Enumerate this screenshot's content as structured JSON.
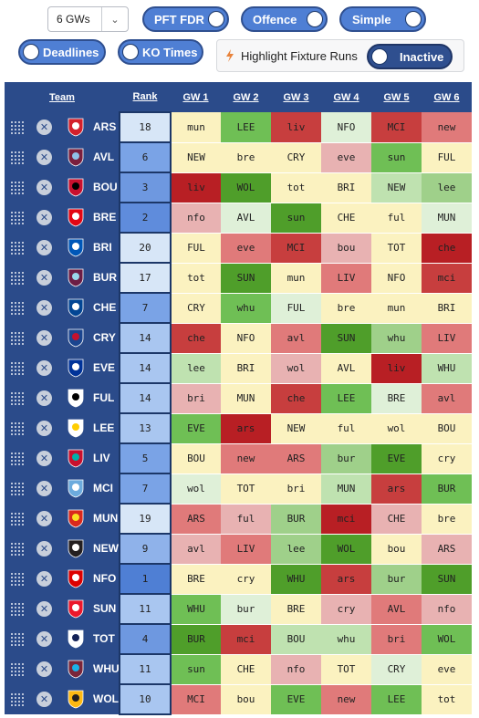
{
  "controls": {
    "gw_select": {
      "value": "6 GWs"
    },
    "toggles": [
      {
        "label": "PFT FDR",
        "knob": "right"
      },
      {
        "label": "Offence",
        "knob": "right"
      },
      {
        "label": "Simple",
        "knob": "right"
      },
      {
        "label": "Deadlines",
        "knob": "left"
      },
      {
        "label": "KO Times",
        "knob": "left"
      }
    ],
    "highlight": {
      "label": "Highlight Fixture Runs",
      "state": "Inactive"
    }
  },
  "table": {
    "headers": {
      "team": "Team",
      "rank": "Rank",
      "gw": [
        "GW 1",
        "GW 2",
        "GW 3",
        "GW 4",
        "GW 5",
        "GW 6"
      ]
    },
    "rows": [
      {
        "team": "ARS",
        "crest": "#d3202b",
        "crest2": "#ffffff",
        "rank": "18",
        "rank_bg": "#d7e6f7",
        "fixtures": [
          "mun",
          "LEE",
          "liv",
          "NFO",
          "MCI",
          "new"
        ],
        "colors": [
          "#fbf2c0",
          "#6fbf55",
          "#c73e3e",
          "#dff0d8",
          "#c73e3e",
          "#e07a7a"
        ]
      },
      {
        "team": "AVL",
        "crest": "#7a1f3d",
        "crest2": "#8fc1e8",
        "rank": "6",
        "rank_bg": "#7aa3e6",
        "fixtures": [
          "NEW",
          "bre",
          "CRY",
          "eve",
          "sun",
          "FUL"
        ],
        "colors": [
          "#fbf2c0",
          "#fbf2c0",
          "#fbf2c0",
          "#e8b2b2",
          "#6fbf55",
          "#fbf2c0"
        ]
      },
      {
        "team": "BOU",
        "crest": "#c8102e",
        "crest2": "#000000",
        "rank": "3",
        "rank_bg": "#6e98e0",
        "fixtures": [
          "liv",
          "WOL",
          "tot",
          "BRI",
          "NEW",
          "lee"
        ],
        "colors": [
          "#b81f24",
          "#4f9e2a",
          "#fbf2c0",
          "#fbf2c0",
          "#bfe2b0",
          "#9fd08a"
        ]
      },
      {
        "team": "BRE",
        "crest": "#e30613",
        "crest2": "#ffffff",
        "rank": "2",
        "rank_bg": "#5f8cdc",
        "fixtures": [
          "nfo",
          "AVL",
          "sun",
          "CHE",
          "ful",
          "MUN"
        ],
        "colors": [
          "#e8b2b2",
          "#dff0d8",
          "#4f9e2a",
          "#fbf2c0",
          "#fbf2c0",
          "#dff0d8"
        ]
      },
      {
        "team": "BRI",
        "crest": "#0057b8",
        "crest2": "#ffffff",
        "rank": "20",
        "rank_bg": "#d7e6f7",
        "fixtures": [
          "FUL",
          "eve",
          "MCI",
          "bou",
          "TOT",
          "che"
        ],
        "colors": [
          "#fbf2c0",
          "#e07a7a",
          "#c73e3e",
          "#e8b2b2",
          "#fbf2c0",
          "#b81f24"
        ]
      },
      {
        "team": "BUR",
        "crest": "#6c1d45",
        "crest2": "#99d6ea",
        "rank": "17",
        "rank_bg": "#d7e6f7",
        "fixtures": [
          "tot",
          "SUN",
          "mun",
          "LIV",
          "NFO",
          "mci"
        ],
        "colors": [
          "#fbf2c0",
          "#4f9e2a",
          "#fbf2c0",
          "#e07a7a",
          "#fbf2c0",
          "#c73e3e"
        ]
      },
      {
        "team": "CHE",
        "crest": "#034694",
        "crest2": "#ffffff",
        "rank": "7",
        "rank_bg": "#7aa3e6",
        "fixtures": [
          "CRY",
          "whu",
          "FUL",
          "bre",
          "mun",
          "BRI"
        ],
        "colors": [
          "#fbf2c0",
          "#6fbf55",
          "#dff0d8",
          "#fbf2c0",
          "#fbf2c0",
          "#fbf2c0"
        ]
      },
      {
        "team": "CRY",
        "crest": "#1b458f",
        "crest2": "#c4122e",
        "rank": "14",
        "rank_bg": "#a9c6f0",
        "fixtures": [
          "che",
          "NFO",
          "avl",
          "SUN",
          "whu",
          "LIV"
        ],
        "colors": [
          "#c73e3e",
          "#fbf2c0",
          "#e07a7a",
          "#4f9e2a",
          "#9fd08a",
          "#e07a7a"
        ]
      },
      {
        "team": "EVE",
        "crest": "#003399",
        "crest2": "#ffffff",
        "rank": "14",
        "rank_bg": "#a9c6f0",
        "fixtures": [
          "lee",
          "BRI",
          "wol",
          "AVL",
          "liv",
          "WHU"
        ],
        "colors": [
          "#bfe2b0",
          "#fbf2c0",
          "#e8b2b2",
          "#fbf2c0",
          "#b81f24",
          "#bfe2b0"
        ]
      },
      {
        "team": "FUL",
        "crest": "#ffffff",
        "crest2": "#000000",
        "rank": "14",
        "rank_bg": "#a9c6f0",
        "fixtures": [
          "bri",
          "MUN",
          "che",
          "LEE",
          "BRE",
          "avl"
        ],
        "colors": [
          "#e8b2b2",
          "#fbf2c0",
          "#c73e3e",
          "#6fbf55",
          "#dff0d8",
          "#e07a7a"
        ]
      },
      {
        "team": "LEE",
        "crest": "#ffffff",
        "crest2": "#ffcd00",
        "rank": "13",
        "rank_bg": "#a9c6f0",
        "fixtures": [
          "EVE",
          "ars",
          "NEW",
          "ful",
          "wol",
          "BOU"
        ],
        "colors": [
          "#6fbf55",
          "#b81f24",
          "#fbf2c0",
          "#fbf2c0",
          "#fbf2c0",
          "#fbf2c0"
        ]
      },
      {
        "team": "LIV",
        "crest": "#c8102e",
        "crest2": "#00b2a9",
        "rank": "5",
        "rank_bg": "#7aa3e6",
        "fixtures": [
          "BOU",
          "new",
          "ARS",
          "bur",
          "EVE",
          "cry"
        ],
        "colors": [
          "#fbf2c0",
          "#e07a7a",
          "#e07a7a",
          "#9fd08a",
          "#4f9e2a",
          "#fbf2c0"
        ]
      },
      {
        "team": "MCI",
        "crest": "#6cabdd",
        "crest2": "#ffffff",
        "rank": "7",
        "rank_bg": "#7aa3e6",
        "fixtures": [
          "wol",
          "TOT",
          "bri",
          "MUN",
          "ars",
          "BUR"
        ],
        "colors": [
          "#dff0d8",
          "#fbf2c0",
          "#fbf2c0",
          "#bfe2b0",
          "#c73e3e",
          "#6fbf55"
        ]
      },
      {
        "team": "MUN",
        "crest": "#da291c",
        "crest2": "#fbe122",
        "rank": "19",
        "rank_bg": "#d7e6f7",
        "fixtures": [
          "ARS",
          "ful",
          "BUR",
          "mci",
          "CHE",
          "bre"
        ],
        "colors": [
          "#e07a7a",
          "#e8b2b2",
          "#9fd08a",
          "#b81f24",
          "#e8b2b2",
          "#fbf2c0"
        ]
      },
      {
        "team": "NEW",
        "crest": "#241f20",
        "crest2": "#ffffff",
        "rank": "9",
        "rank_bg": "#8fb2ea",
        "fixtures": [
          "avl",
          "LIV",
          "lee",
          "WOL",
          "bou",
          "ARS"
        ],
        "colors": [
          "#e8b2b2",
          "#e07a7a",
          "#9fd08a",
          "#4f9e2a",
          "#fbf2c0",
          "#e8b2b2"
        ]
      },
      {
        "team": "NFO",
        "crest": "#dd0000",
        "crest2": "#ffffff",
        "rank": "1",
        "rank_bg": "#4f7fd4",
        "fixtures": [
          "BRE",
          "cry",
          "WHU",
          "ars",
          "bur",
          "SUN"
        ],
        "colors": [
          "#fbf2c0",
          "#fbf2c0",
          "#4f9e2a",
          "#c73e3e",
          "#9fd08a",
          "#4f9e2a"
        ]
      },
      {
        "team": "SUN",
        "crest": "#eb172b",
        "crest2": "#ffffff",
        "rank": "11",
        "rank_bg": "#a9c6f0",
        "fixtures": [
          "WHU",
          "bur",
          "BRE",
          "cry",
          "AVL",
          "nfo"
        ],
        "colors": [
          "#6fbf55",
          "#dff0d8",
          "#fbf2c0",
          "#e8b2b2",
          "#e07a7a",
          "#e8b2b2"
        ]
      },
      {
        "team": "TOT",
        "crest": "#ffffff",
        "crest2": "#132257",
        "rank": "4",
        "rank_bg": "#6e98e0",
        "fixtures": [
          "BUR",
          "mci",
          "BOU",
          "whu",
          "bri",
          "WOL"
        ],
        "colors": [
          "#4f9e2a",
          "#c73e3e",
          "#bfe2b0",
          "#bfe2b0",
          "#e07a7a",
          "#6fbf55"
        ]
      },
      {
        "team": "WHU",
        "crest": "#7a263a",
        "crest2": "#1bb1e7",
        "rank": "11",
        "rank_bg": "#a9c6f0",
        "fixtures": [
          "sun",
          "CHE",
          "nfo",
          "TOT",
          "CRY",
          "eve"
        ],
        "colors": [
          "#6fbf55",
          "#fbf2c0",
          "#e8b2b2",
          "#fbf2c0",
          "#dff0d8",
          "#fbf2c0"
        ]
      },
      {
        "team": "WOL",
        "crest": "#fdb913",
        "crest2": "#231f20",
        "rank": "10",
        "rank_bg": "#a9c6f0",
        "fixtures": [
          "MCI",
          "bou",
          "EVE",
          "new",
          "LEE",
          "tot"
        ],
        "colors": [
          "#e07a7a",
          "#fbf2c0",
          "#6fbf55",
          "#e07a7a",
          "#6fbf55",
          "#fbf2c0"
        ]
      }
    ]
  }
}
